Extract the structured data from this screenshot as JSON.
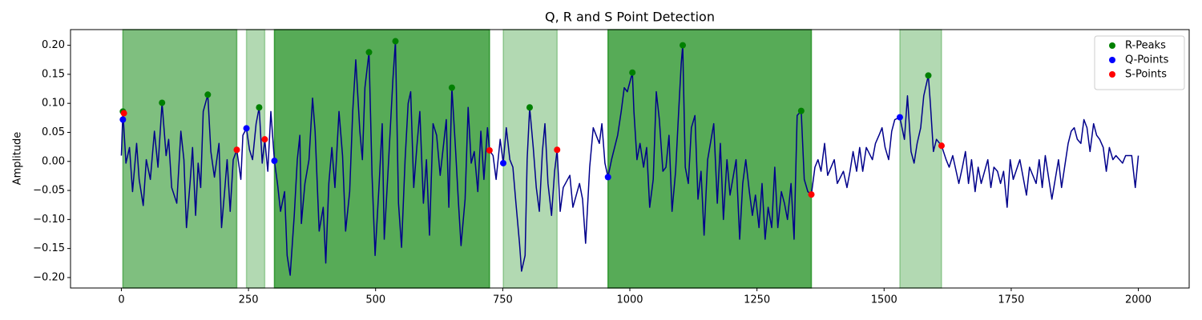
{
  "chart_data": {
    "type": "line",
    "title": "Q, R and S Point Detection",
    "ylabel": "Amplitude",
    "xlim": [
      -100,
      2100
    ],
    "ylim": [
      -0.218,
      0.227
    ],
    "xticks": [
      0,
      250,
      500,
      750,
      1000,
      1250,
      1500,
      1750,
      2000
    ],
    "yticks": [
      {
        "value": -0.2,
        "label": "−0.20"
      },
      {
        "value": -0.15,
        "label": "−0.15"
      },
      {
        "value": -0.1,
        "label": "−0.10"
      },
      {
        "value": -0.05,
        "label": "−0.05"
      },
      {
        "value": 0,
        "label": "0.00"
      },
      {
        "value": 0.05,
        "label": "0.05"
      },
      {
        "value": 0.1,
        "label": "0.10"
      },
      {
        "value": 0.15,
        "label": "0.15"
      },
      {
        "value": 0.2,
        "label": "0.20"
      }
    ],
    "legend": "upper right",
    "spans": [
      {
        "x": [
          3,
          227
        ],
        "color": "#008000",
        "alpha": 0.5
      },
      {
        "x": [
          246,
          282
        ],
        "color": "#008000",
        "alpha": 0.3
      },
      {
        "x": [
          301,
          724
        ],
        "color": "#008000",
        "alpha": 0.66
      },
      {
        "x": [
          751,
          857
        ],
        "color": "#008000",
        "alpha": 0.3
      },
      {
        "x": [
          957,
          1357
        ],
        "color": "#008000",
        "alpha": 0.66
      },
      {
        "x": [
          1531,
          1613
        ],
        "color": "#008000",
        "alpha": 0.3
      }
    ],
    "series": [
      {
        "type": "line",
        "color": "#00008b",
        "x": [
          0,
          3,
          9,
          16,
          22,
          30,
          35,
          43,
          49,
          57,
          65,
          72,
          80,
          88,
          93,
          99,
          109,
          117,
          123,
          128,
          135,
          140,
          146,
          151,
          156,
          161,
          170,
          176,
          183,
          192,
          197,
          203,
          208,
          214,
          220,
          227,
          235,
          239,
          246,
          252,
          258,
          265,
          271,
          277,
          282,
          288,
          294,
          301,
          307,
          313,
          321,
          326,
          332,
          340,
          346,
          351,
          354,
          361,
          369,
          376,
          381,
          389,
          397,
          402,
          408,
          414,
          420,
          428,
          435,
          441,
          449,
          455,
          461,
          469,
          474,
          479,
          487,
          493,
          499,
          507,
          513,
          517,
          524,
          529,
          534,
          539,
          545,
          551,
          558,
          564,
          569,
          575,
          581,
          587,
          594,
          600,
          606,
          613,
          620,
          627,
          633,
          639,
          644,
          650,
          657,
          663,
          668,
          676,
          682,
          688,
          694,
          701,
          707,
          713,
          720,
          724,
          731,
          737,
          745,
          751,
          757,
          764,
          770,
          776,
          783,
          787,
          794,
          798,
          803,
          810,
          816,
          822,
          828,
          833,
          839,
          846,
          852,
          857,
          863,
          869,
          882,
          888,
          901,
          907,
          913,
          921,
          928,
          940,
          945,
          951,
          957,
          964,
          970,
          976,
          983,
          989,
          995,
          1005,
          1008,
          1014,
          1020,
          1027,
          1033,
          1039,
          1046,
          1052,
          1058,
          1065,
          1071,
          1077,
          1083,
          1090,
          1096,
          1101,
          1104,
          1109,
          1115,
          1121,
          1128,
          1134,
          1140,
          1146,
          1153,
          1165,
          1172,
          1178,
          1184,
          1191,
          1197,
          1209,
          1216,
          1222,
          1228,
          1235,
          1241,
          1247,
          1254,
          1260,
          1266,
          1272,
          1279,
          1285,
          1291,
          1298,
          1304,
          1310,
          1317,
          1323,
          1329,
          1337,
          1343,
          1350,
          1357,
          1364,
          1370,
          1376,
          1383,
          1389,
          1402,
          1408,
          1420,
          1427,
          1433,
          1439,
          1446,
          1452,
          1458,
          1465,
          1477,
          1483,
          1490,
          1496,
          1502,
          1509,
          1515,
          1521,
          1531,
          1540,
          1546,
          1553,
          1559,
          1565,
          1572,
          1578,
          1587,
          1591,
          1597,
          1603,
          1613,
          1622,
          1628,
          1635,
          1647,
          1654,
          1660,
          1666,
          1672,
          1679,
          1685,
          1691,
          1704,
          1710,
          1716,
          1723,
          1729,
          1735,
          1742,
          1748,
          1754,
          1767,
          1780,
          1786,
          1799,
          1805,
          1811,
          1817,
          1830,
          1843,
          1849,
          1855,
          1862,
          1868,
          1874,
          1880,
          1887,
          1893,
          1899,
          1905,
          1912,
          1918,
          1924,
          1931,
          1937,
          1943,
          1950,
          1956,
          1969,
          1975,
          1987,
          1994,
          2000
        ],
        "values": [
          0.01,
          0.086,
          -0.003,
          0.024,
          -0.052,
          0.031,
          -0.031,
          -0.076,
          0.003,
          -0.031,
          0.052,
          -0.01,
          0.101,
          0.01,
          0.038,
          -0.045,
          -0.072,
          0.052,
          0.003,
          -0.114,
          -0.038,
          0.024,
          -0.093,
          -0.003,
          -0.045,
          0.086,
          0.115,
          0.017,
          -0.027,
          0.031,
          -0.114,
          -0.052,
          0.003,
          -0.086,
          0.003,
          0.02,
          -0.031,
          0.045,
          0.057,
          0.02,
          0.003,
          0.065,
          0.093,
          -0.003,
          0.038,
          -0.017,
          0.086,
          0.001,
          -0.038,
          -0.086,
          -0.052,
          -0.162,
          -0.196,
          -0.093,
          0.003,
          0.045,
          -0.107,
          -0.038,
          0.003,
          0.109,
          0.052,
          -0.12,
          -0.079,
          -0.175,
          -0.038,
          0.024,
          -0.045,
          0.086,
          0.01,
          -0.12,
          -0.052,
          0.086,
          0.175,
          0.052,
          0.003,
          0.127,
          0.188,
          -0.024,
          -0.162,
          -0.038,
          0.065,
          -0.134,
          -0.024,
          0.058,
          0.141,
          0.207,
          -0.072,
          -0.148,
          0.003,
          0.1,
          0.12,
          -0.045,
          0.024,
          0.086,
          -0.072,
          0.003,
          -0.127,
          0.065,
          0.045,
          -0.024,
          0.024,
          0.072,
          -0.079,
          0.127,
          0.024,
          -0.072,
          -0.145,
          -0.065,
          0.093,
          -0.003,
          0.017,
          -0.052,
          0.052,
          -0.031,
          0.058,
          0.019,
          0.01,
          -0.031,
          0.038,
          -0.003,
          0.058,
          0.003,
          -0.01,
          -0.072,
          -0.141,
          -0.189,
          -0.162,
          0.003,
          0.093,
          0.024,
          -0.045,
          -0.086,
          0.017,
          0.065,
          -0.038,
          -0.093,
          -0.017,
          0.02,
          -0.086,
          -0.045,
          -0.024,
          -0.079,
          -0.038,
          -0.065,
          -0.141,
          -0.01,
          0.058,
          0.031,
          0.065,
          -0.003,
          -0.027,
          0.003,
          0.024,
          0.045,
          0.086,
          0.127,
          0.12,
          0.153,
          0.086,
          0.003,
          0.031,
          -0.01,
          0.024,
          -0.079,
          -0.031,
          0.12,
          0.072,
          -0.017,
          -0.01,
          0.045,
          -0.086,
          -0.017,
          0.086,
          0.168,
          0.2,
          -0.01,
          -0.038,
          0.058,
          0.079,
          -0.065,
          -0.017,
          -0.127,
          0.003,
          0.065,
          -0.072,
          0.031,
          -0.1,
          0.003,
          -0.058,
          0.003,
          -0.134,
          -0.038,
          0.003,
          -0.052,
          -0.093,
          -0.058,
          -0.114,
          -0.038,
          -0.134,
          -0.079,
          -0.114,
          -0.01,
          -0.114,
          -0.052,
          -0.072,
          -0.1,
          -0.038,
          -0.134,
          0.079,
          0.087,
          -0.031,
          -0.052,
          -0.057,
          -0.01,
          0.003,
          -0.017,
          0.031,
          -0.024,
          0.003,
          -0.038,
          -0.017,
          -0.045,
          -0.017,
          0.017,
          -0.017,
          0.024,
          -0.017,
          0.024,
          0.003,
          0.031,
          0.045,
          0.058,
          0.024,
          0.003,
          0.052,
          0.072,
          0.076,
          0.038,
          0.113,
          0.017,
          -0.003,
          0.031,
          0.058,
          0.113,
          0.148,
          0.1,
          0.017,
          0.038,
          0.027,
          0.003,
          -0.01,
          0.01,
          -0.038,
          -0.01,
          0.017,
          -0.038,
          0.003,
          -0.052,
          -0.01,
          -0.038,
          0.003,
          -0.045,
          -0.01,
          -0.017,
          -0.038,
          -0.017,
          -0.079,
          0.003,
          -0.031,
          0.003,
          -0.058,
          -0.01,
          -0.038,
          0.003,
          -0.045,
          0.01,
          -0.065,
          0.003,
          -0.045,
          -0.01,
          0.031,
          0.052,
          0.058,
          0.038,
          0.031,
          0.072,
          0.058,
          0.017,
          0.065,
          0.045,
          0.038,
          0.024,
          -0.017,
          0.024,
          0.003,
          0.01,
          -0.003,
          0.01,
          0.01,
          -0.045,
          0.01
        ]
      },
      {
        "type": "scatter",
        "name": "R-Peaks",
        "color": "#008000",
        "x": [
          3,
          80,
          170,
          271,
          487,
          539,
          650,
          803,
          1005,
          1104,
          1337,
          1587
        ],
        "values": [
          0.086,
          0.101,
          0.115,
          0.093,
          0.188,
          0.207,
          0.127,
          0.093,
          0.153,
          0.2,
          0.087,
          0.148
        ]
      },
      {
        "type": "scatter",
        "name": "Q-Points",
        "color": "#0000ff",
        "x": [
          3,
          246,
          301,
          751,
          957,
          1531
        ],
        "values": [
          0.072,
          0.057,
          0.001,
          -0.003,
          -0.027,
          0.076
        ]
      },
      {
        "type": "scatter",
        "name": "S-Points",
        "color": "#ff0000",
        "x": [
          5,
          227,
          282,
          724,
          857,
          1357,
          1613
        ],
        "values": [
          0.083,
          0.02,
          0.038,
          0.019,
          0.02,
          -0.057,
          0.027
        ]
      }
    ]
  }
}
